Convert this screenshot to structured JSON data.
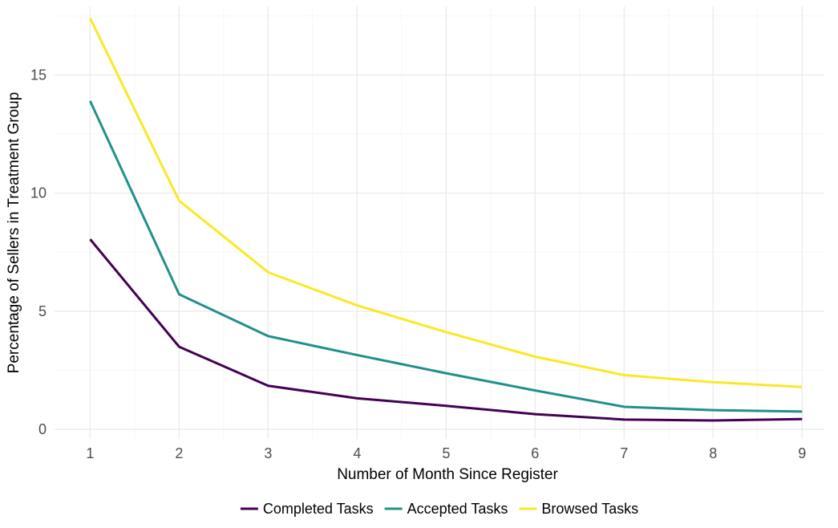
{
  "chart_data": {
    "type": "line",
    "title": "",
    "xlabel": "Number of Month Since Register",
    "ylabel": "Percentage of Sellers in Treatment Group",
    "x": [
      1,
      2,
      3,
      4,
      5,
      6,
      7,
      8,
      9
    ],
    "xlim": [
      0.6,
      9.25
    ],
    "ylim": [
      -0.4,
      17.9
    ],
    "xticks": [
      1,
      2,
      3,
      4,
      5,
      6,
      7,
      8,
      9
    ],
    "yticks": [
      0,
      5,
      10,
      15
    ],
    "grid": true,
    "legend_position": "bottom",
    "series": [
      {
        "name": "Completed Tasks",
        "color": "#440154",
        "values": [
          8.05,
          3.5,
          1.85,
          1.32,
          1.0,
          0.65,
          0.42,
          0.38,
          0.44
        ]
      },
      {
        "name": "Accepted Tasks",
        "color": "#21908C",
        "values": [
          13.9,
          5.72,
          3.95,
          3.15,
          2.38,
          1.65,
          0.96,
          0.82,
          0.76
        ]
      },
      {
        "name": "Browsed Tasks",
        "color": "#FDE725",
        "values": [
          17.4,
          9.68,
          6.65,
          5.25,
          4.12,
          3.08,
          2.3,
          2.0,
          1.8
        ]
      }
    ]
  }
}
